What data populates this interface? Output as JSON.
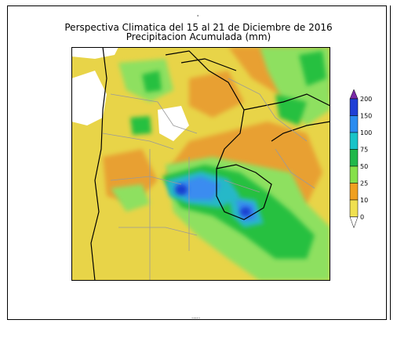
{
  "title_line1": "Perspectiva Climatica del 15 al 21 de Diciembre de 2016",
  "title_line2": "Precipitacion Acumulada (mm)",
  "title_mark": "'",
  "footer_text": ".....",
  "legend": {
    "levels": [
      "200",
      "150",
      "100",
      "75",
      "50",
      "25",
      "10",
      "0"
    ],
    "colors": [
      "#7a2aa8",
      "#1f3fd6",
      "#2a8cf0",
      "#18c4c8",
      "#1fb84a",
      "#86e04a",
      "#f0a020",
      "#f0e050"
    ]
  },
  "palette": {
    "yellow": "#e8d448",
    "orange": "#e8a030",
    "lightgreen": "#8ee060",
    "green": "#28c040",
    "cyan": "#28b8c8",
    "blue": "#3a8cf0",
    "darkblue": "#1840d0"
  }
}
